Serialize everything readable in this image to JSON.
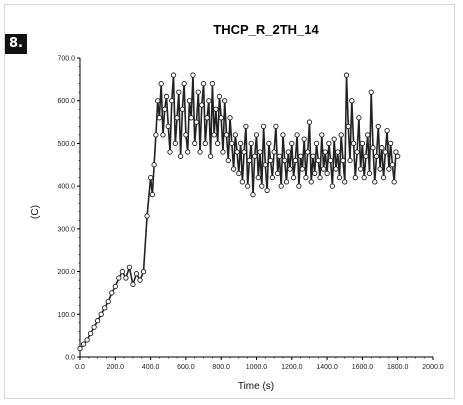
{
  "figure": {
    "badge": "8."
  },
  "chart_data": {
    "type": "line",
    "title": "THCP_R_2TH_14",
    "xlabel": "Time (s)",
    "ylabel": "(C)",
    "xlim": [
      0,
      2000
    ],
    "ylim": [
      0,
      700
    ],
    "xticks": [
      "0.0",
      "200.0",
      "400.0",
      "600.0",
      "800.0",
      "1000.0",
      "1200.0",
      "1400.0",
      "1600.0",
      "1800.0",
      "2000.0"
    ],
    "yticks": [
      "0.0",
      "100.0",
      "200.0",
      "300.0",
      "400.0",
      "500.0",
      "600.0",
      "700.0"
    ],
    "grid": false,
    "series": [
      {
        "color": "#222222",
        "marker": "open-circle",
        "x": [
          0,
          20,
          40,
          60,
          80,
          100,
          120,
          140,
          160,
          180,
          200,
          220,
          240,
          260,
          280,
          300,
          320,
          340,
          360,
          380,
          400,
          410,
          420,
          430,
          440,
          450,
          460,
          470,
          480,
          490,
          500,
          510,
          520,
          530,
          540,
          550,
          560,
          570,
          580,
          590,
          600,
          610,
          620,
          630,
          640,
          650,
          660,
          670,
          680,
          690,
          700,
          710,
          720,
          730,
          740,
          750,
          760,
          770,
          780,
          790,
          800,
          810,
          820,
          830,
          840,
          850,
          860,
          870,
          880,
          890,
          900,
          910,
          920,
          930,
          940,
          950,
          960,
          970,
          980,
          990,
          1000,
          1010,
          1020,
          1030,
          1040,
          1050,
          1060,
          1070,
          1080,
          1090,
          1100,
          1110,
          1120,
          1130,
          1140,
          1150,
          1160,
          1170,
          1180,
          1190,
          1200,
          1210,
          1220,
          1230,
          1240,
          1250,
          1260,
          1270,
          1280,
          1290,
          1300,
          1310,
          1320,
          1330,
          1340,
          1350,
          1360,
          1370,
          1380,
          1390,
          1400,
          1410,
          1420,
          1430,
          1440,
          1450,
          1460,
          1470,
          1480,
          1490,
          1500,
          1510,
          1520,
          1530,
          1540,
          1550,
          1560,
          1570,
          1580,
          1590,
          1600,
          1610,
          1620,
          1630,
          1640,
          1650,
          1660,
          1670,
          1680,
          1690,
          1700,
          1710,
          1720,
          1730,
          1740,
          1750,
          1760,
          1770,
          1780,
          1790,
          1800
        ],
        "y": [
          20,
          30,
          40,
          55,
          70,
          85,
          100,
          115,
          130,
          150,
          165,
          185,
          200,
          185,
          210,
          170,
          195,
          180,
          200,
          330,
          420,
          380,
          450,
          520,
          600,
          560,
          640,
          520,
          580,
          610,
          540,
          480,
          600,
          660,
          500,
          560,
          620,
          470,
          580,
          640,
          520,
          480,
          600,
          560,
          660,
          500,
          550,
          620,
          480,
          590,
          640,
          500,
          560,
          600,
          470,
          640,
          520,
          580,
          500,
          610,
          560,
          480,
          600,
          520,
          460,
          560,
          500,
          440,
          520,
          480,
          430,
          500,
          410,
          480,
          540,
          400,
          460,
          500,
          380,
          470,
          520,
          420,
          480,
          400,
          540,
          450,
          390,
          500,
          460,
          420,
          480,
          540,
          430,
          470,
          400,
          520,
          460,
          410,
          480,
          440,
          500,
          420,
          460,
          520,
          400,
          470,
          440,
          510,
          420,
          480,
          550,
          410,
          470,
          430,
          500,
          460,
          420,
          520,
          440,
          480,
          430,
          500,
          460,
          400,
          510,
          440,
          480,
          420,
          520,
          460,
          410,
          660,
          540,
          460,
          600,
          500,
          420,
          480,
          560,
          440,
          500,
          420,
          470,
          520,
          430,
          620,
          490,
          410,
          470,
          540,
          440,
          490,
          420,
          480,
          530,
          440,
          500,
          450,
          410,
          480,
          470
        ]
      }
    ]
  }
}
